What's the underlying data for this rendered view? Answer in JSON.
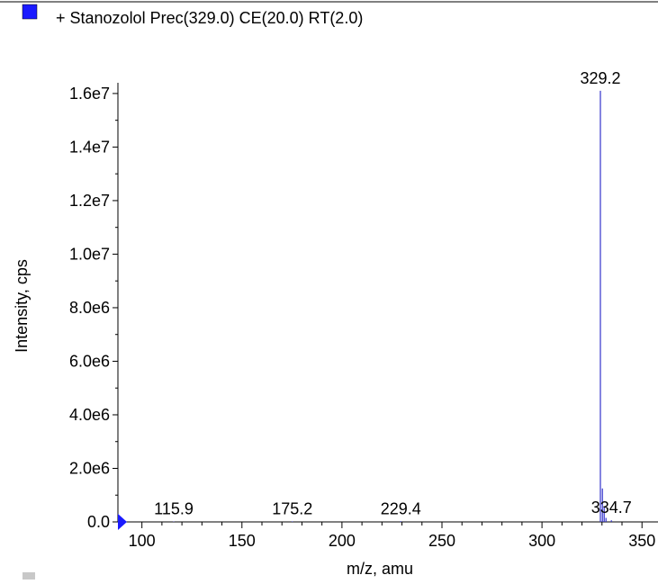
{
  "legend": {
    "label": "+ Stanozolol Prec(329.0) CE(20.0) RT(2.0)",
    "swatch_color": "#1a1aff"
  },
  "colors": {
    "series": "#3333cc",
    "axis": "#000000",
    "marker": "#1a1aff"
  },
  "chart_data": {
    "type": "line",
    "title": "",
    "xlabel": "m/z, amu",
    "ylabel": "Intensity, cps",
    "xlim": [
      88,
      358
    ],
    "ylim": [
      0,
      16400000
    ],
    "x_ticks": [
      100,
      150,
      200,
      250,
      300,
      350
    ],
    "x_tick_labels": [
      "100",
      "150",
      "200",
      "250",
      "300",
      "350"
    ],
    "y_ticks": [
      0,
      2000000,
      4000000,
      6000000,
      8000000,
      10000000,
      12000000,
      14000000,
      16000000
    ],
    "y_tick_labels": [
      "0.0",
      "2.0e6",
      "4.0e6",
      "6.0e6",
      "8.0e6",
      "1.0e7",
      "1.2e7",
      "1.4e7",
      "1.6e7"
    ],
    "series": [
      {
        "x": [
          115.9,
          175.2,
          229.4,
          329.2,
          330.2,
          331.1,
          332.0,
          334.7
        ],
        "y": [
          15000,
          20000,
          25000,
          16100000,
          1250000,
          550000,
          150000,
          60000
        ]
      }
    ],
    "peak_labels": [
      {
        "x": 115.9,
        "text": "115.9"
      },
      {
        "x": 175.2,
        "text": "175.2"
      },
      {
        "x": 229.4,
        "text": "229.4"
      },
      {
        "x": 329.2,
        "text": "329.2"
      },
      {
        "x": 334.7,
        "text": "334.7"
      }
    ]
  }
}
